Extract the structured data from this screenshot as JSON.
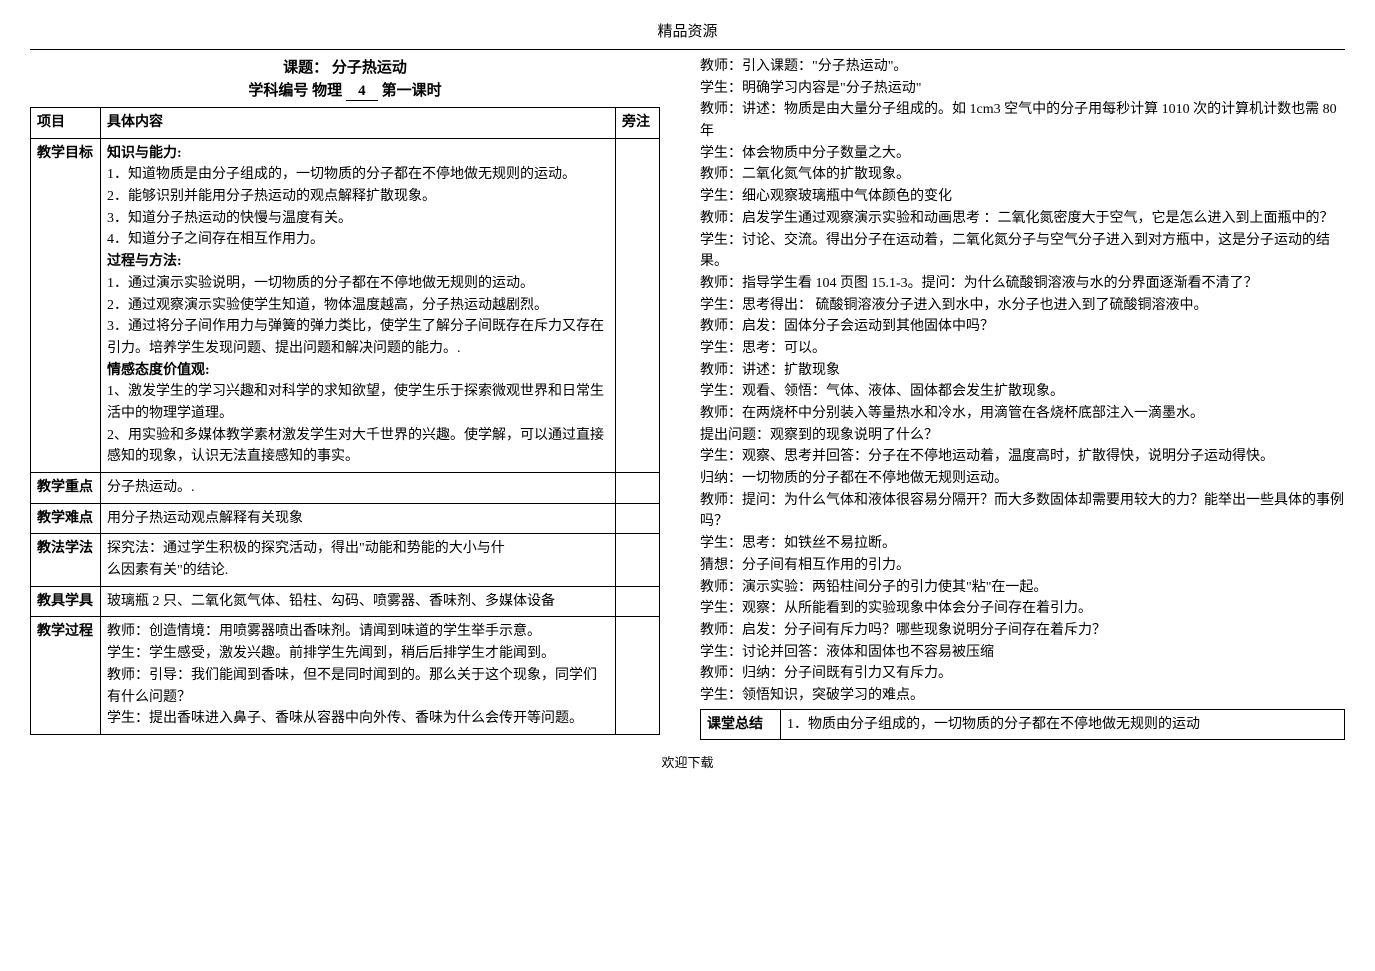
{
  "page": {
    "header": "精品资源",
    "footer": "欢迎下载"
  },
  "left": {
    "title": "课题： 分子热运动",
    "subtitle_prefix": "学科编号 物理 ",
    "subtitle_num": "4",
    "subtitle_suffix": "  第一课时",
    "headers": {
      "item": "项目",
      "content": "具体内容",
      "note": "旁注"
    },
    "rows": [
      {
        "item": "教学目标",
        "content": "<span class=\"section-head\">知识与能力:</span><br>1．知道物质是由分子组成的，一切物质的分子都在不停地做无规则的运动。<br>2．能够识别并能用分子热运动的观点解释扩散现象。<br>3．知道分子热运动的快慢与温度有关。<br>4．知道分子之间存在相互作用力。<br><span class=\"section-head\">过程与方法:</span><br>1．通过演示实验说明，一切物质的分子都在不停地做无规则的运动。<br>2．通过观察演示实验使学生知道，物体温度越高，分子热运动越剧烈。<br>3．通过将分子间作用力与弹簧的弹力类比，使学生了解分子间既存在斥力又存在引力。培养学生发现问题、提出问题和解决问题的能力。.<br><span class=\"section-head\">情感态度价值观:</span><br>1、激发学生的学习兴趣和对科学的求知欲望，使学生乐于探索微观世界和日常生活中的物理学道理。<br>2、用实验和多媒体教学素材激发学生对大千世界的兴趣。使学解，可以通过直接感知的现象，认识无法直接感知的事实。",
        "note": ""
      },
      {
        "item": "教学重点",
        "content": "分子热运动。.",
        "note": ""
      },
      {
        "item": "教学难点",
        "content": "用分子热运动观点解释有关现象",
        "note": ""
      },
      {
        "item": "教法学法",
        "content": "探究法：通过学生积极的探究活动，得出\"动能和势能的大小与什<br>么因素有关\"的结论.",
        "note": ""
      },
      {
        "item": "教具学具",
        "content": "玻璃瓶 2 只、二氧化氮气体、铅柱、勾码、喷雾器、香味剂、多媒体设备",
        "note": ""
      },
      {
        "item": "教学过程",
        "content": "教师：创造情境：用喷雾器喷出香味剂。请闻到味道的学生举手示意。<br>学生：学生感受，激发兴趣。前排学生先闻到，稍后后排学生才能闻到。<br>教师：引导：我们能闻到香味，但不是同时闻到的。那么关于这个现象，同学们有什么问题？<br>学生：提出香味进入鼻子、香味从容器中向外传、香味为什么会传开等问题。",
        "note": ""
      }
    ]
  },
  "right": {
    "lines": [
      "教师：引入课题：\"分子热运动\"。",
      "学生：明确学习内容是\"分子热运动\"",
      "教师：讲述：物质是由大量分子组成的。如 1cm3 空气中的分子用每秒计算 1010 次的计算机计数也需 80 年",
      "学生：体会物质中分子数量之大。",
      "教师：二氧化氮气体的扩散现象。",
      "学生：细心观察玻璃瓶中气体颜色的变化",
      "教师：启发学生通过观察演示实验和动画思考 ：二氧化氮密度大于空气，它是怎么进入到上面瓶中的？",
      "学生：讨论、交流。得出分子在运动着，二氧化氮分子与空气分子进入到对方瓶中，这是分子运动的结果。",
      "教师：指导学生看 104 页图 15.1-3。提问：为什么硫酸铜溶液与水的分界面逐渐看不清了？",
      "学生：思考得出： 硫酸铜溶液分子进入到水中，水分子也进入到了硫酸铜溶液中。",
      "教师：启发：固体分子会运动到其他固体中吗？",
      "学生：思考：可以。",
      "教师：讲述：扩散现象",
      "学生：观看、领悟：气体、液体、固体都会发生扩散现象。",
      "教师：在两烧杯中分别装入等量热水和冷水，用滴管在各烧杯底部注入一滴墨水。",
      "提出问题：观察到的现象说明了什么？",
      "学生：观察、思考并回答：分子在不停地运动着，温度高时，扩散得快，说明分子运动得快。",
      "归纳：一切物质的分子都在不停地做无规则运动。",
      "教师：提问：为什么气体和液体很容易分隔开？而大多数固体却需要用较大的力？能举出一些具体的事例吗？",
      "学生：思考：如铁丝不易拉断。",
      "猜想：分子间有相互作用的引力。",
      "教师：演示实验：两铅柱间分子的引力使其\"粘\"在一起。",
      "学生：观察：从所能看到的实验现象中体会分子间存在着引力。",
      "教师：启发：分子间有斥力吗？哪些现象说明分子间存在着斥力？",
      "学生：讨论并回答：液体和固体也不容易被压缩",
      "教师：归纳：分子间既有引力又有斥力。",
      "学生：领悟知识，突破学习的难点。"
    ],
    "summary": {
      "label": "课堂总结",
      "content": "1．物质由分子组成的，一切物质的分子都在不停地做无规则的运动"
    }
  }
}
